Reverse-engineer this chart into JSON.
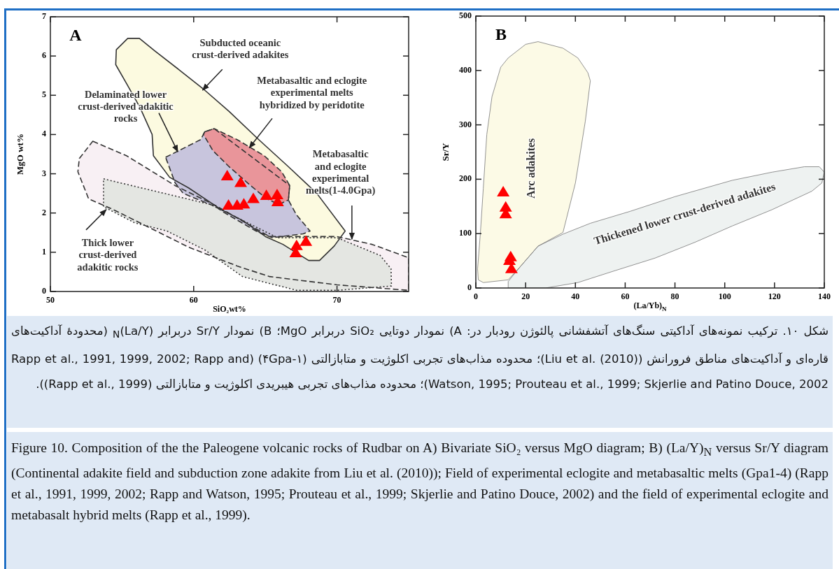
{
  "chart_data": [
    {
      "type": "scatter",
      "xlabel": "SiO₂wt%",
      "ylabel": "MgO wt%",
      "xlim": [
        50,
        75
      ],
      "ylim": [
        0,
        7
      ],
      "xticks": [
        50,
        60,
        70
      ],
      "yticks": [
        0,
        1,
        2,
        3,
        4,
        5,
        6,
        7
      ],
      "series": [
        {
          "type": "area",
          "color": "#f8f0f4",
          "line_style": "dashed",
          "x": [
            52.96,
            55.31,
            58.7,
            61.53,
            65.29,
            70.0,
            72.45,
            75.0,
            75.0,
            70.0,
            65.29,
            63.03,
            59.64,
            57.01,
            54.37,
            52.67,
            51.92,
            52.02
          ],
          "values": [
            3.83,
            3.46,
            2.7,
            2.19,
            1.4,
            1.4,
            1.2,
            0.86,
            0.03,
            0.17,
            0.38,
            0.65,
            1.13,
            1.61,
            2.09,
            2.36,
            3.05,
            3.39
          ]
        },
        {
          "type": "area",
          "color": "#e4e6e2",
          "line_style": "dotted",
          "x": [
            53.71,
            61.15,
            65.86,
            70.0,
            73.01,
            73.77,
            73.8,
            70.0,
            67.18,
            63.41,
            60.77,
            58.14,
            55.88,
            53.71
          ],
          "values": [
            2.87,
            2.22,
            1.37,
            1.37,
            0.92,
            0.58,
            0.14,
            0.03,
            0.03,
            0.38,
            1.06,
            1.54,
            1.75,
            2.16
          ]
        },
        {
          "type": "area",
          "color": "#fcfae0",
          "line_style": "solid",
          "x": [
            55.4,
            56.21,
            57.29,
            58.98,
            60.77,
            62.47,
            64.54,
            66.61,
            68.59,
            70.57,
            69.81,
            68.78,
            68.02,
            66.23,
            65.01,
            63.41,
            61.9,
            59.64,
            58.32,
            57.19,
            57.1,
            56.25,
            55.31,
            54.56,
            54.6
          ],
          "values": [
            6.45,
            6.45,
            6.13,
            5.65,
            5.13,
            4.59,
            3.87,
            3.18,
            2.5,
            1.54,
            1.16,
            0.79,
            0.79,
            1.2,
            1.4,
            1.81,
            2.09,
            2.64,
            2.91,
            3.46,
            4.0,
            4.69,
            5.3,
            5.78,
            6.16
          ]
        },
        {
          "type": "area",
          "color": "#c8c5dd",
          "line_style": "dashed",
          "x": [
            58.04,
            60.49,
            60.77,
            61.43,
            66.7,
            66.61,
            67.18,
            68.12,
            67.65,
            65.48,
            64.35,
            62.09,
            61.53,
            59.27,
            58.7
          ],
          "values": [
            3.42,
            3.87,
            4.07,
            4.15,
            2.7,
            2.33,
            1.95,
            1.54,
            1.47,
            1.37,
            1.54,
            2.02,
            2.16,
            2.5,
            2.77
          ]
        },
        {
          "type": "area",
          "color": "#e9959a",
          "line_style": "dashed",
          "x": [
            60.77,
            61.43,
            63.03,
            64.92,
            66.14,
            66.7,
            66.61,
            65.95,
            65.1,
            63.97,
            62.47,
            61.34,
            60.68
          ],
          "values": [
            4.07,
            4.15,
            3.87,
            3.46,
            3.05,
            2.7,
            2.33,
            2.22,
            2.36,
            2.7,
            3.18,
            3.59,
            4.0
          ]
        },
        {
          "type": "line",
          "color": "#222222",
          "x": [
            62.0,
            60.62
          ],
          "values": [
            5.66,
            5.13
          ]
        },
        {
          "type": "line",
          "color": "#222222",
          "x": [
            57.57,
            58.89
          ],
          "values": [
            4.55,
            3.56
          ]
        },
        {
          "type": "line",
          "color": "#222222",
          "x": [
            65.48,
            63.88
          ],
          "values": [
            4.41,
            3.66
          ]
        },
        {
          "type": "line",
          "color": "#222222",
          "x": [
            71.04,
            71.04
          ],
          "values": [
            2.19,
            1.33
          ]
        },
        {
          "type": "line",
          "color": "#222222",
          "x": [
            52.49,
            53.9
          ],
          "values": [
            1.57,
            2.09
          ]
        },
        {
          "type": "scatter",
          "marker": "triangle",
          "color": "#ff0000",
          "x": [
            62.34,
            63.28,
            62.43,
            63.03,
            63.5,
            64.16,
            65.07,
            65.82,
            65.86,
            67.83,
            67.18,
            67.12
          ],
          "values": [
            2.94,
            2.77,
            2.19,
            2.19,
            2.22,
            2.36,
            2.44,
            2.46,
            2.28,
            1.27,
            1.16,
            0.98
          ]
        }
      ],
      "annotations": [
        "A",
        "Subducted oceanic\ncrust-derived adakites",
        "Metabasaltic and eclogite\nexperimental melts\nhybridized by peridotite",
        "Delaminated lower\ncrust-derived adakitic\nrocks",
        "Metabasaltic\nand eclogite\nexperimental\nmelts(1-4.0Gpa)",
        "Thick lower\ncrust-derived\nadakitic rocks"
      ]
    },
    {
      "type": "scatter",
      "xlabel": "(La/Yb)$_{N}$",
      "ylabel": "Sr/Y",
      "xlim": [
        0,
        140
      ],
      "ylim": [
        0,
        500
      ],
      "xticks": [
        0,
        20,
        40,
        60,
        80,
        100,
        120,
        140
      ],
      "yticks": [
        0,
        100,
        200,
        300,
        400,
        500
      ],
      "series": [
        {
          "type": "area",
          "color": "#fcfae6",
          "line_style": "solid",
          "x": [
            1.0,
            3,
            13,
            18,
            25,
            35,
            40,
            44,
            46,
            45,
            41,
            35,
            25,
            20,
            13,
            10,
            6.5,
            4.4,
            3,
            1.8,
            0.7
          ],
          "values": [
            15,
            10,
            15,
            40,
            77,
            102,
            193,
            307,
            381,
            396,
            423,
            441,
            453,
            448,
            423,
            406,
            352,
            282,
            183,
            99,
            35
          ]
        },
        {
          "type": "area",
          "color": "#eef2f1",
          "line_style": "solid",
          "x": [
            13,
            13,
            28,
            41,
            56,
            72,
            88,
            103,
            119,
            135,
            139,
            140,
            138,
            132,
            119,
            103,
            80,
            62,
            46,
            35,
            25,
            18
          ],
          "values": [
            12,
            0,
            0,
            10,
            32,
            55,
            84,
            114,
            144,
            178,
            193,
            213,
            223,
            223,
            213,
            198,
            168,
            141,
            119,
            99,
            77,
            40
          ]
        },
        {
          "type": "scatter",
          "marker": "triangle",
          "color": "#ff0000",
          "x": [
            11,
            12,
            12,
            14,
            13.5,
            14.3
          ],
          "values": [
            176,
            148,
            136,
            57,
            50,
            35
          ]
        }
      ],
      "annotations": [
        "B",
        "Arc adakites",
        "Thickened lower crust-derived adakites"
      ]
    },
    {
      "type": "other",
      "annotations": [
        "شکل ۱۰. ترکیب نمونه‌های آداکیتی سنگ‌های آتشفشانی پالئوژن رودبار در: A) نمودار دوتایی SiO₂ دربرابر MgO؛ B) نمودار Sr/Y دربرابر (La/Y)$_{N}$ (محدودهٔ آداکیت‌های قاره‌ای و آداکیت‌های مناطق فرورانش (Liu et al. (2010))؛ محدوده مذاب‌های تجربی اکلوژیت و متابازالتی (۱-۴Gpa) (Rapp et al., 1991, 1999, 2002; Rapp and Watson, 1995; Prouteau et al., 1999; Skjerlie and Patino Douce, 2002)؛ محدوده مذاب‌های تجربی هیبریدی اکلوژیت و متابازالتی (Rapp et al., 1999)).",
        "Figure 10. Composition of the the Paleogene volcanic rocks of Rudbar on A) Bivariate SiO₂ versus MgO diagram; B) (La/Y)$_{N}$ versus Sr/Y diagram (Continental adakite field and subduction zone adakite from Liu et al. (2010)); Field of experimental eclogite and metabasaltic melts (Gpa1-4) (Rapp et al., 1991, 1999, 2002; Rapp and Watson, 1995; Prouteau et al., 1999; Skjerlie and Patino Douce, 2002) and the field of experimental eclogite and metabasalt hybrid melts (Rapp et al., 1999)."
      ]
    }
  ]
}
